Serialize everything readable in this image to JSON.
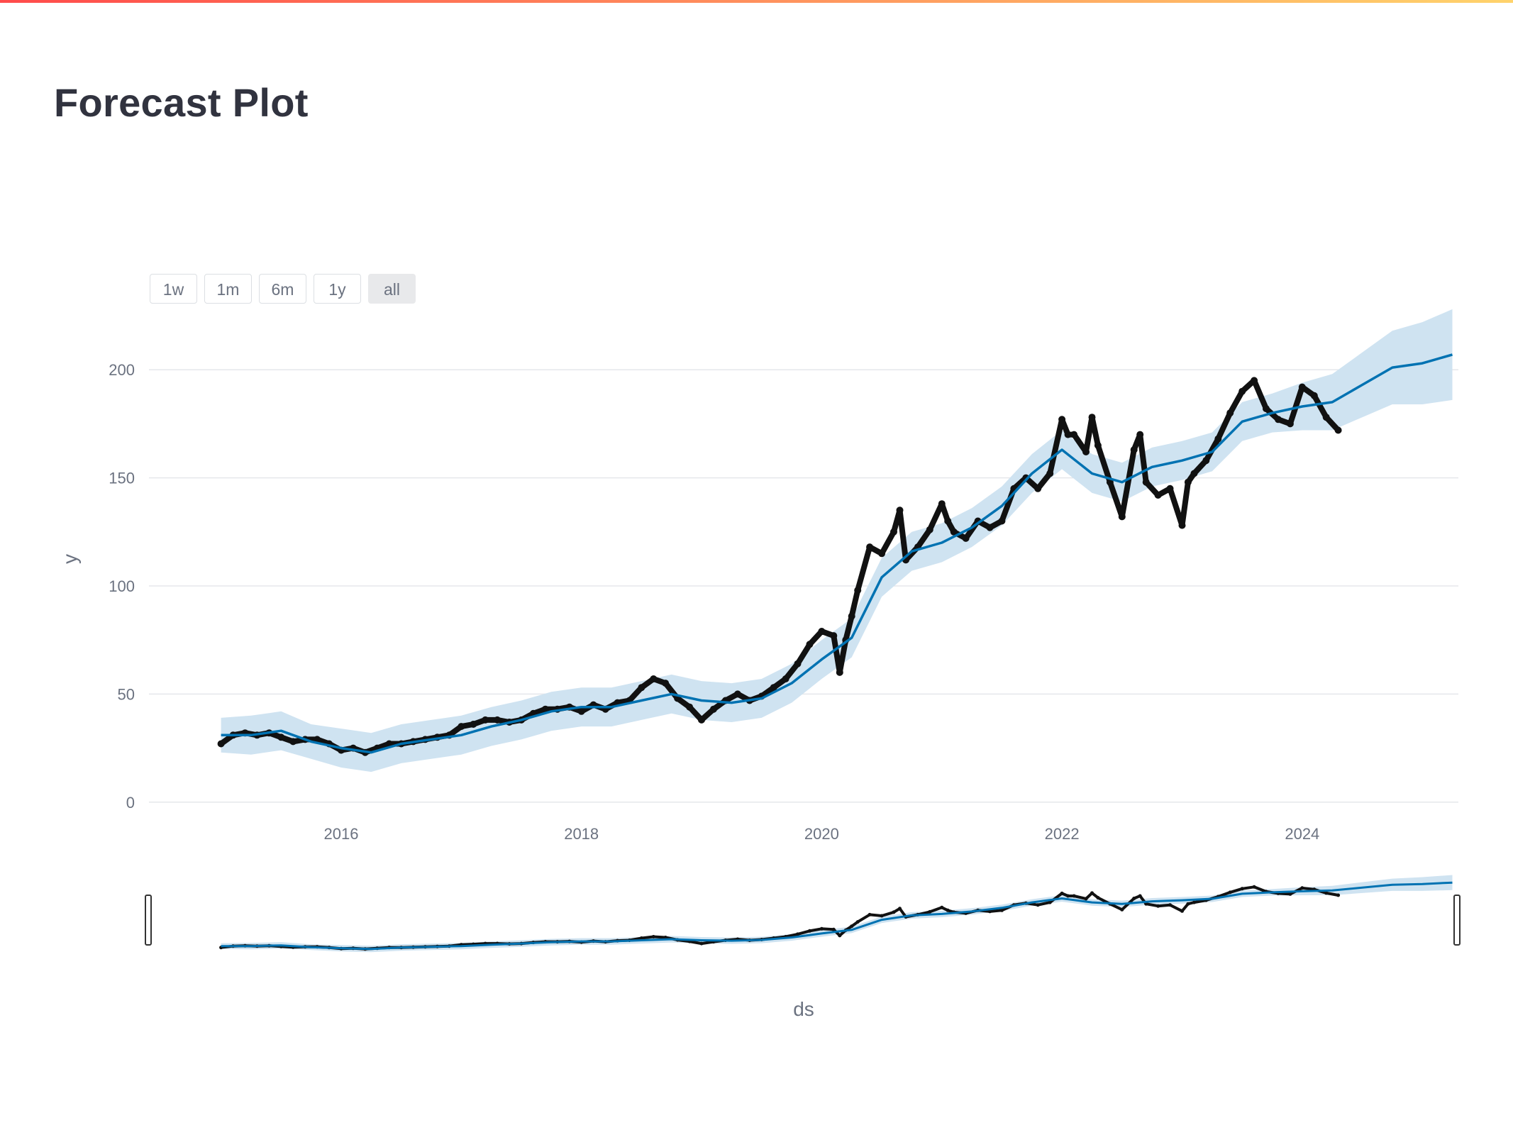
{
  "page": {
    "title": "Forecast Plot"
  },
  "range_selector": {
    "buttons": [
      {
        "label": "1w"
      },
      {
        "label": "1m"
      },
      {
        "label": "6m"
      },
      {
        "label": "1y"
      },
      {
        "label": "all",
        "active": true
      }
    ]
  },
  "colors": {
    "actual": "#111111",
    "forecast": "#0072b2",
    "uncertainty": "#cfe3f1",
    "grid": "#e5e7eb",
    "accent_bar": "#ff4b4b"
  },
  "chart_data": {
    "type": "line",
    "xlabel": "ds",
    "ylabel": "y",
    "xlim": [
      2014.4,
      2025.3
    ],
    "ylim": [
      -5,
      225
    ],
    "y_ticks": [
      "0",
      "50",
      "100",
      "150",
      "200"
    ],
    "x_ticks": [
      "2016",
      "2018",
      "2020",
      "2022",
      "2024"
    ],
    "grid": true,
    "range_slider": true,
    "series": [
      {
        "role": "forecast",
        "x": [
          2015.0,
          2015.25,
          2015.5,
          2015.75,
          2016.0,
          2016.25,
          2016.5,
          2016.75,
          2017.0,
          2017.25,
          2017.5,
          2017.75,
          2018.0,
          2018.25,
          2018.5,
          2018.75,
          2019.0,
          2019.25,
          2019.5,
          2019.75,
          2020.0,
          2020.25,
          2020.5,
          2020.75,
          2021.0,
          2021.25,
          2021.5,
          2021.75,
          2022.0,
          2022.25,
          2022.5,
          2022.75,
          2023.0,
          2023.25,
          2023.5,
          2023.75,
          2024.0,
          2024.25,
          2024.5,
          2024.75,
          2025.0,
          2025.25
        ],
        "y": [
          31,
          31,
          33,
          28,
          25,
          23,
          27,
          29,
          31,
          35,
          38,
          42,
          44,
          44,
          47,
          50,
          47,
          46,
          48,
          55,
          66,
          76,
          104,
          116,
          120,
          127,
          137,
          152,
          163,
          152,
          148,
          155,
          158,
          162,
          176,
          180,
          183,
          185,
          193,
          201,
          203,
          207
        ]
      },
      {
        "role": "forecast_lower",
        "x": [
          2015.0,
          2015.25,
          2015.5,
          2015.75,
          2016.0,
          2016.25,
          2016.5,
          2016.75,
          2017.0,
          2017.25,
          2017.5,
          2017.75,
          2018.0,
          2018.25,
          2018.5,
          2018.75,
          2019.0,
          2019.25,
          2019.5,
          2019.75,
          2020.0,
          2020.25,
          2020.5,
          2020.75,
          2021.0,
          2021.25,
          2021.5,
          2021.75,
          2022.0,
          2022.25,
          2022.5,
          2022.75,
          2023.0,
          2023.25,
          2023.5,
          2023.75,
          2024.0,
          2024.25,
          2024.5,
          2024.75,
          2025.0,
          2025.25
        ],
        "y": [
          23,
          22,
          24,
          20,
          16,
          14,
          18,
          20,
          22,
          26,
          29,
          33,
          35,
          35,
          38,
          41,
          38,
          37,
          39,
          46,
          57,
          67,
          95,
          107,
          111,
          118,
          128,
          143,
          154,
          143,
          139,
          146,
          149,
          153,
          167,
          171,
          172,
          172,
          178,
          184,
          184,
          186
        ]
      },
      {
        "role": "forecast_upper",
        "x": [
          2015.0,
          2015.25,
          2015.5,
          2015.75,
          2016.0,
          2016.25,
          2016.5,
          2016.75,
          2017.0,
          2017.25,
          2017.5,
          2017.75,
          2018.0,
          2018.25,
          2018.5,
          2018.75,
          2019.0,
          2019.25,
          2019.5,
          2019.75,
          2020.0,
          2020.25,
          2020.5,
          2020.75,
          2021.0,
          2021.25,
          2021.5,
          2021.75,
          2022.0,
          2022.25,
          2022.5,
          2022.75,
          2023.0,
          2023.25,
          2023.5,
          2023.75,
          2024.0,
          2024.25,
          2024.5,
          2024.75,
          2025.0,
          2025.25
        ],
        "y": [
          39,
          40,
          42,
          36,
          34,
          32,
          36,
          38,
          40,
          44,
          47,
          51,
          53,
          53,
          56,
          59,
          56,
          55,
          57,
          64,
          75,
          85,
          113,
          125,
          129,
          136,
          146,
          161,
          172,
          161,
          157,
          164,
          167,
          171,
          185,
          189,
          194,
          198,
          208,
          218,
          222,
          228
        ]
      },
      {
        "role": "actual",
        "x": [
          2015.0,
          2015.1,
          2015.2,
          2015.3,
          2015.4,
          2015.5,
          2015.6,
          2015.7,
          2015.8,
          2015.9,
          2016.0,
          2016.1,
          2016.2,
          2016.3,
          2016.4,
          2016.5,
          2016.6,
          2016.7,
          2016.8,
          2016.9,
          2017.0,
          2017.1,
          2017.2,
          2017.3,
          2017.4,
          2017.5,
          2017.6,
          2017.7,
          2017.8,
          2017.9,
          2018.0,
          2018.1,
          2018.2,
          2018.3,
          2018.4,
          2018.5,
          2018.6,
          2018.7,
          2018.8,
          2018.9,
          2019.0,
          2019.1,
          2019.2,
          2019.3,
          2019.4,
          2019.5,
          2019.6,
          2019.7,
          2019.8,
          2019.9,
          2020.0,
          2020.1,
          2020.15,
          2020.2,
          2020.25,
          2020.3,
          2020.4,
          2020.5,
          2020.6,
          2020.65,
          2020.7,
          2020.8,
          2020.9,
          2021.0,
          2021.05,
          2021.1,
          2021.2,
          2021.3,
          2021.4,
          2021.5,
          2021.6,
          2021.7,
          2021.8,
          2021.9,
          2022.0,
          2022.05,
          2022.1,
          2022.2,
          2022.25,
          2022.3,
          2022.4,
          2022.5,
          2022.6,
          2022.65,
          2022.7,
          2022.8,
          2022.9,
          2023.0,
          2023.05,
          2023.1,
          2023.2,
          2023.3,
          2023.4,
          2023.5,
          2023.6,
          2023.7,
          2023.8,
          2023.9,
          2024.0,
          2024.1,
          2024.2,
          2024.3
        ],
        "y": [
          27,
          31,
          32,
          31,
          32,
          30,
          28,
          29,
          29,
          27,
          24,
          25,
          23,
          25,
          27,
          27,
          28,
          29,
          30,
          31,
          35,
          36,
          38,
          38,
          37,
          38,
          41,
          43,
          43,
          44,
          42,
          45,
          43,
          46,
          47,
          53,
          57,
          55,
          48,
          44,
          38,
          43,
          47,
          50,
          47,
          49,
          53,
          57,
          64,
          73,
          79,
          77,
          60,
          75,
          86,
          98,
          118,
          115,
          125,
          135,
          112,
          118,
          126,
          138,
          130,
          125,
          122,
          130,
          127,
          130,
          145,
          150,
          145,
          152,
          177,
          170,
          170,
          162,
          178,
          165,
          148,
          132,
          163,
          170,
          148,
          142,
          145,
          128,
          148,
          152,
          158,
          168,
          180,
          190,
          195,
          182,
          177,
          175,
          192,
          188,
          178,
          172
        ]
      }
    ]
  }
}
